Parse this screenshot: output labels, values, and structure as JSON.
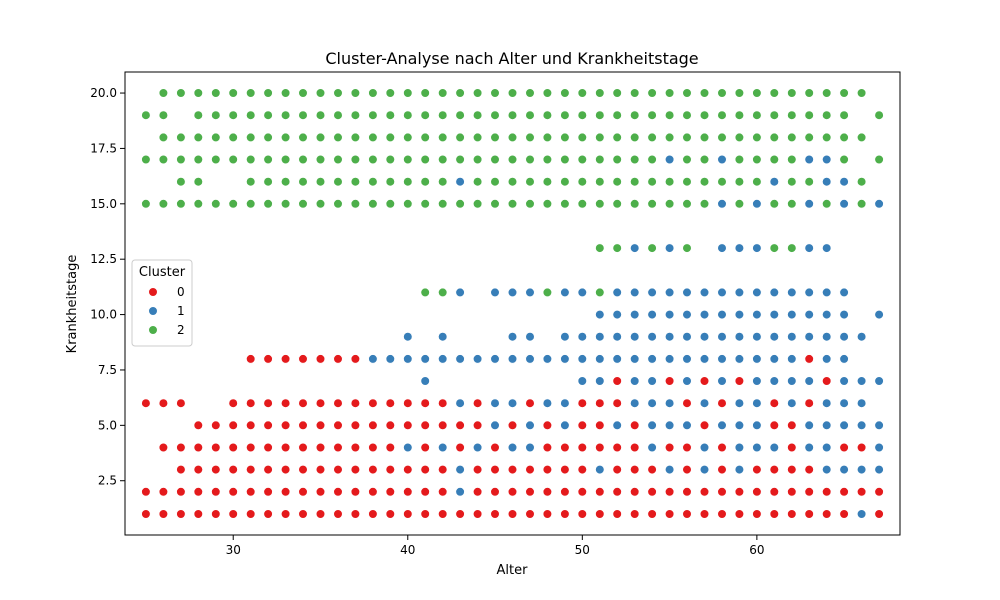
{
  "chart_data": {
    "type": "scatter",
    "title": "Cluster-Analyse nach Alter und Krankheitstage",
    "xlabel": "Alter",
    "ylabel": "Krankheitstage",
    "xlim": [
      23.8,
      68.2
    ],
    "ylim": [
      0.05,
      20.95
    ],
    "x_ticks": [
      30,
      40,
      50,
      60
    ],
    "y_ticks": [
      2.5,
      5.0,
      7.5,
      10.0,
      12.5,
      15.0,
      17.5,
      20.0
    ],
    "x_tick_labels": [
      "30",
      "40",
      "50",
      "60"
    ],
    "y_tick_labels": [
      "2.5",
      "5.0",
      "7.5",
      "10.0",
      "12.5",
      "15.0",
      "17.5",
      "20.0"
    ],
    "legend": {
      "title": "Cluster",
      "placement": "center-left",
      "entries": [
        {
          "label": "0",
          "color": "#e41a1c"
        },
        {
          "label": "1",
          "color": "#377eb8"
        },
        {
          "label": "2",
          "color": "#4daf4a"
        }
      ]
    },
    "grid": false,
    "x_min": 25,
    "x_max": 67,
    "series": [
      {
        "cluster": 0,
        "color": "#e41a1c",
        "rows": [
          {
            "y": 1,
            "ranges": [
              [
                25,
                67
              ]
            ],
            "except": [
              66
            ]
          },
          {
            "y": 2,
            "ranges": [
              [
                25,
                67
              ]
            ],
            "except": [
              43
            ]
          },
          {
            "y": 3,
            "ranges": [
              [
                27,
                42
              ],
              [
                44,
                50
              ],
              [
                52,
                54
              ],
              [
                56,
                56
              ],
              [
                58,
                58
              ],
              [
                60,
                63
              ]
            ]
          },
          {
            "y": 4,
            "ranges": [
              [
                26,
                39
              ],
              [
                41,
                41
              ],
              [
                43,
                43
              ],
              [
                45,
                45
              ],
              [
                48,
                53
              ],
              [
                55,
                56
              ],
              [
                58,
                58
              ],
              [
                62,
                62
              ],
              [
                65,
                66
              ]
            ]
          },
          {
            "y": 5,
            "ranges": [
              [
                28,
                44
              ],
              [
                46,
                46
              ],
              [
                48,
                48
              ],
              [
                50,
                51
              ],
              [
                53,
                53
              ],
              [
                57,
                57
              ],
              [
                61,
                62
              ]
            ]
          },
          {
            "y": 6,
            "ranges": [
              [
                25,
                27
              ],
              [
                30,
                42
              ],
              [
                44,
                44
              ],
              [
                47,
                47
              ],
              [
                50,
                52
              ],
              [
                56,
                56
              ],
              [
                58,
                58
              ],
              [
                61,
                61
              ],
              [
                63,
                63
              ]
            ]
          },
          {
            "y": 7,
            "ranges": [
              [
                52,
                52
              ],
              [
                55,
                55
              ],
              [
                57,
                57
              ],
              [
                59,
                59
              ],
              [
                64,
                64
              ]
            ]
          },
          {
            "y": 8,
            "ranges": [
              [
                31,
                37
              ],
              [
                63,
                63
              ]
            ]
          }
        ]
      },
      {
        "cluster": 1,
        "color": "#377eb8",
        "rows": [
          {
            "y": 1,
            "ranges": [
              [
                66,
                66
              ]
            ]
          },
          {
            "y": 2,
            "ranges": [
              [
                43,
                43
              ]
            ]
          },
          {
            "y": 3,
            "ranges": [
              [
                43,
                43
              ],
              [
                51,
                51
              ],
              [
                55,
                55
              ],
              [
                57,
                57
              ],
              [
                59,
                59
              ],
              [
                64,
                67
              ]
            ]
          },
          {
            "y": 4,
            "ranges": [
              [
                40,
                40
              ],
              [
                42,
                42
              ],
              [
                44,
                44
              ],
              [
                46,
                47
              ],
              [
                54,
                54
              ],
              [
                57,
                57
              ],
              [
                59,
                61
              ],
              [
                63,
                64
              ],
              [
                67,
                67
              ]
            ]
          },
          {
            "y": 5,
            "ranges": [
              [
                45,
                45
              ],
              [
                47,
                47
              ],
              [
                49,
                49
              ],
              [
                52,
                52
              ],
              [
                54,
                56
              ],
              [
                58,
                60
              ],
              [
                63,
                67
              ]
            ]
          },
          {
            "y": 6,
            "ranges": [
              [
                43,
                43
              ],
              [
                45,
                46
              ],
              [
                48,
                49
              ],
              [
                53,
                55
              ],
              [
                57,
                57
              ],
              [
                59,
                60
              ],
              [
                62,
                62
              ],
              [
                64,
                66
              ]
            ]
          },
          {
            "y": 7,
            "ranges": [
              [
                41,
                41
              ],
              [
                50,
                51
              ],
              [
                53,
                54
              ],
              [
                56,
                56
              ],
              [
                58,
                58
              ],
              [
                60,
                63
              ],
              [
                65,
                67
              ]
            ]
          },
          {
            "y": 8,
            "ranges": [
              [
                38,
                62
              ],
              [
                64,
                65
              ]
            ]
          },
          {
            "y": 9,
            "ranges": [
              [
                40,
                40
              ],
              [
                42,
                42
              ],
              [
                46,
                47
              ],
              [
                49,
                66
              ]
            ]
          },
          {
            "y": 10,
            "ranges": [
              [
                51,
                65
              ],
              [
                67,
                67
              ]
            ]
          },
          {
            "y": 11,
            "ranges": [
              [
                43,
                43
              ],
              [
                45,
                47
              ],
              [
                49,
                50
              ],
              [
                52,
                65
              ]
            ]
          },
          {
            "y": 13,
            "ranges": [
              [
                53,
                53
              ],
              [
                55,
                55
              ],
              [
                58,
                60
              ],
              [
                63,
                64
              ]
            ]
          },
          {
            "y": 15,
            "ranges": [
              [
                58,
                58
              ],
              [
                60,
                60
              ],
              [
                63,
                63
              ],
              [
                65,
                65
              ],
              [
                67,
                67
              ]
            ]
          },
          {
            "y": 16,
            "ranges": [
              [
                43,
                43
              ],
              [
                61,
                61
              ],
              [
                64,
                65
              ]
            ]
          },
          {
            "y": 17,
            "ranges": [
              [
                55,
                55
              ],
              [
                58,
                58
              ],
              [
                63,
                64
              ]
            ]
          }
        ]
      },
      {
        "cluster": 2,
        "color": "#4daf4a",
        "rows": [
          {
            "y": 11,
            "ranges": [
              [
                41,
                42
              ],
              [
                48,
                48
              ],
              [
                51,
                51
              ]
            ]
          },
          {
            "y": 13,
            "ranges": [
              [
                51,
                52
              ],
              [
                54,
                54
              ],
              [
                56,
                56
              ],
              [
                61,
                62
              ]
            ]
          },
          {
            "y": 15,
            "ranges": [
              [
                25,
                57
              ],
              [
                59,
                59
              ],
              [
                61,
                62
              ],
              [
                64,
                64
              ],
              [
                66,
                66
              ]
            ]
          },
          {
            "y": 16,
            "ranges": [
              [
                27,
                28
              ],
              [
                31,
                42
              ],
              [
                44,
                60
              ],
              [
                62,
                63
              ],
              [
                66,
                66
              ]
            ]
          },
          {
            "y": 17,
            "ranges": [
              [
                25,
                54
              ],
              [
                56,
                57
              ],
              [
                59,
                62
              ],
              [
                65,
                65
              ],
              [
                67,
                67
              ]
            ]
          },
          {
            "y": 18,
            "ranges": [
              [
                26,
                66
              ]
            ]
          },
          {
            "y": 19,
            "ranges": [
              [
                25,
                26
              ],
              [
                28,
                65
              ],
              [
                67,
                67
              ]
            ]
          },
          {
            "y": 20,
            "ranges": [
              [
                26,
                66
              ]
            ]
          }
        ]
      }
    ]
  }
}
